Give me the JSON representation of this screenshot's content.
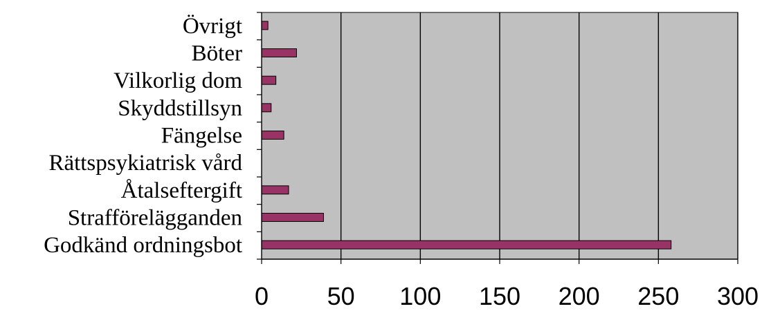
{
  "chart_data": {
    "type": "bar",
    "orientation": "horizontal",
    "categories": [
      "Godkänd ordningsbot",
      "Strafförelägganden",
      "Åtalseftergift",
      "Rättspsykiatrisk vård",
      "Fängelse",
      "Skyddstillsyn",
      "Vilkorlig dom",
      "Böter",
      "Övrigt"
    ],
    "values": [
      258,
      39,
      17,
      0,
      14,
      6,
      9,
      22,
      4
    ],
    "xlim": [
      0,
      300
    ],
    "xticks": [
      "0",
      "50",
      "100",
      "150",
      "200",
      "250",
      "300"
    ],
    "grid": "vertical",
    "legend": "none",
    "colors": {
      "plot_background": "#c0c0c0",
      "bar_fill": "#993366",
      "bar_edge": "#000000",
      "grid": "#000000"
    }
  }
}
